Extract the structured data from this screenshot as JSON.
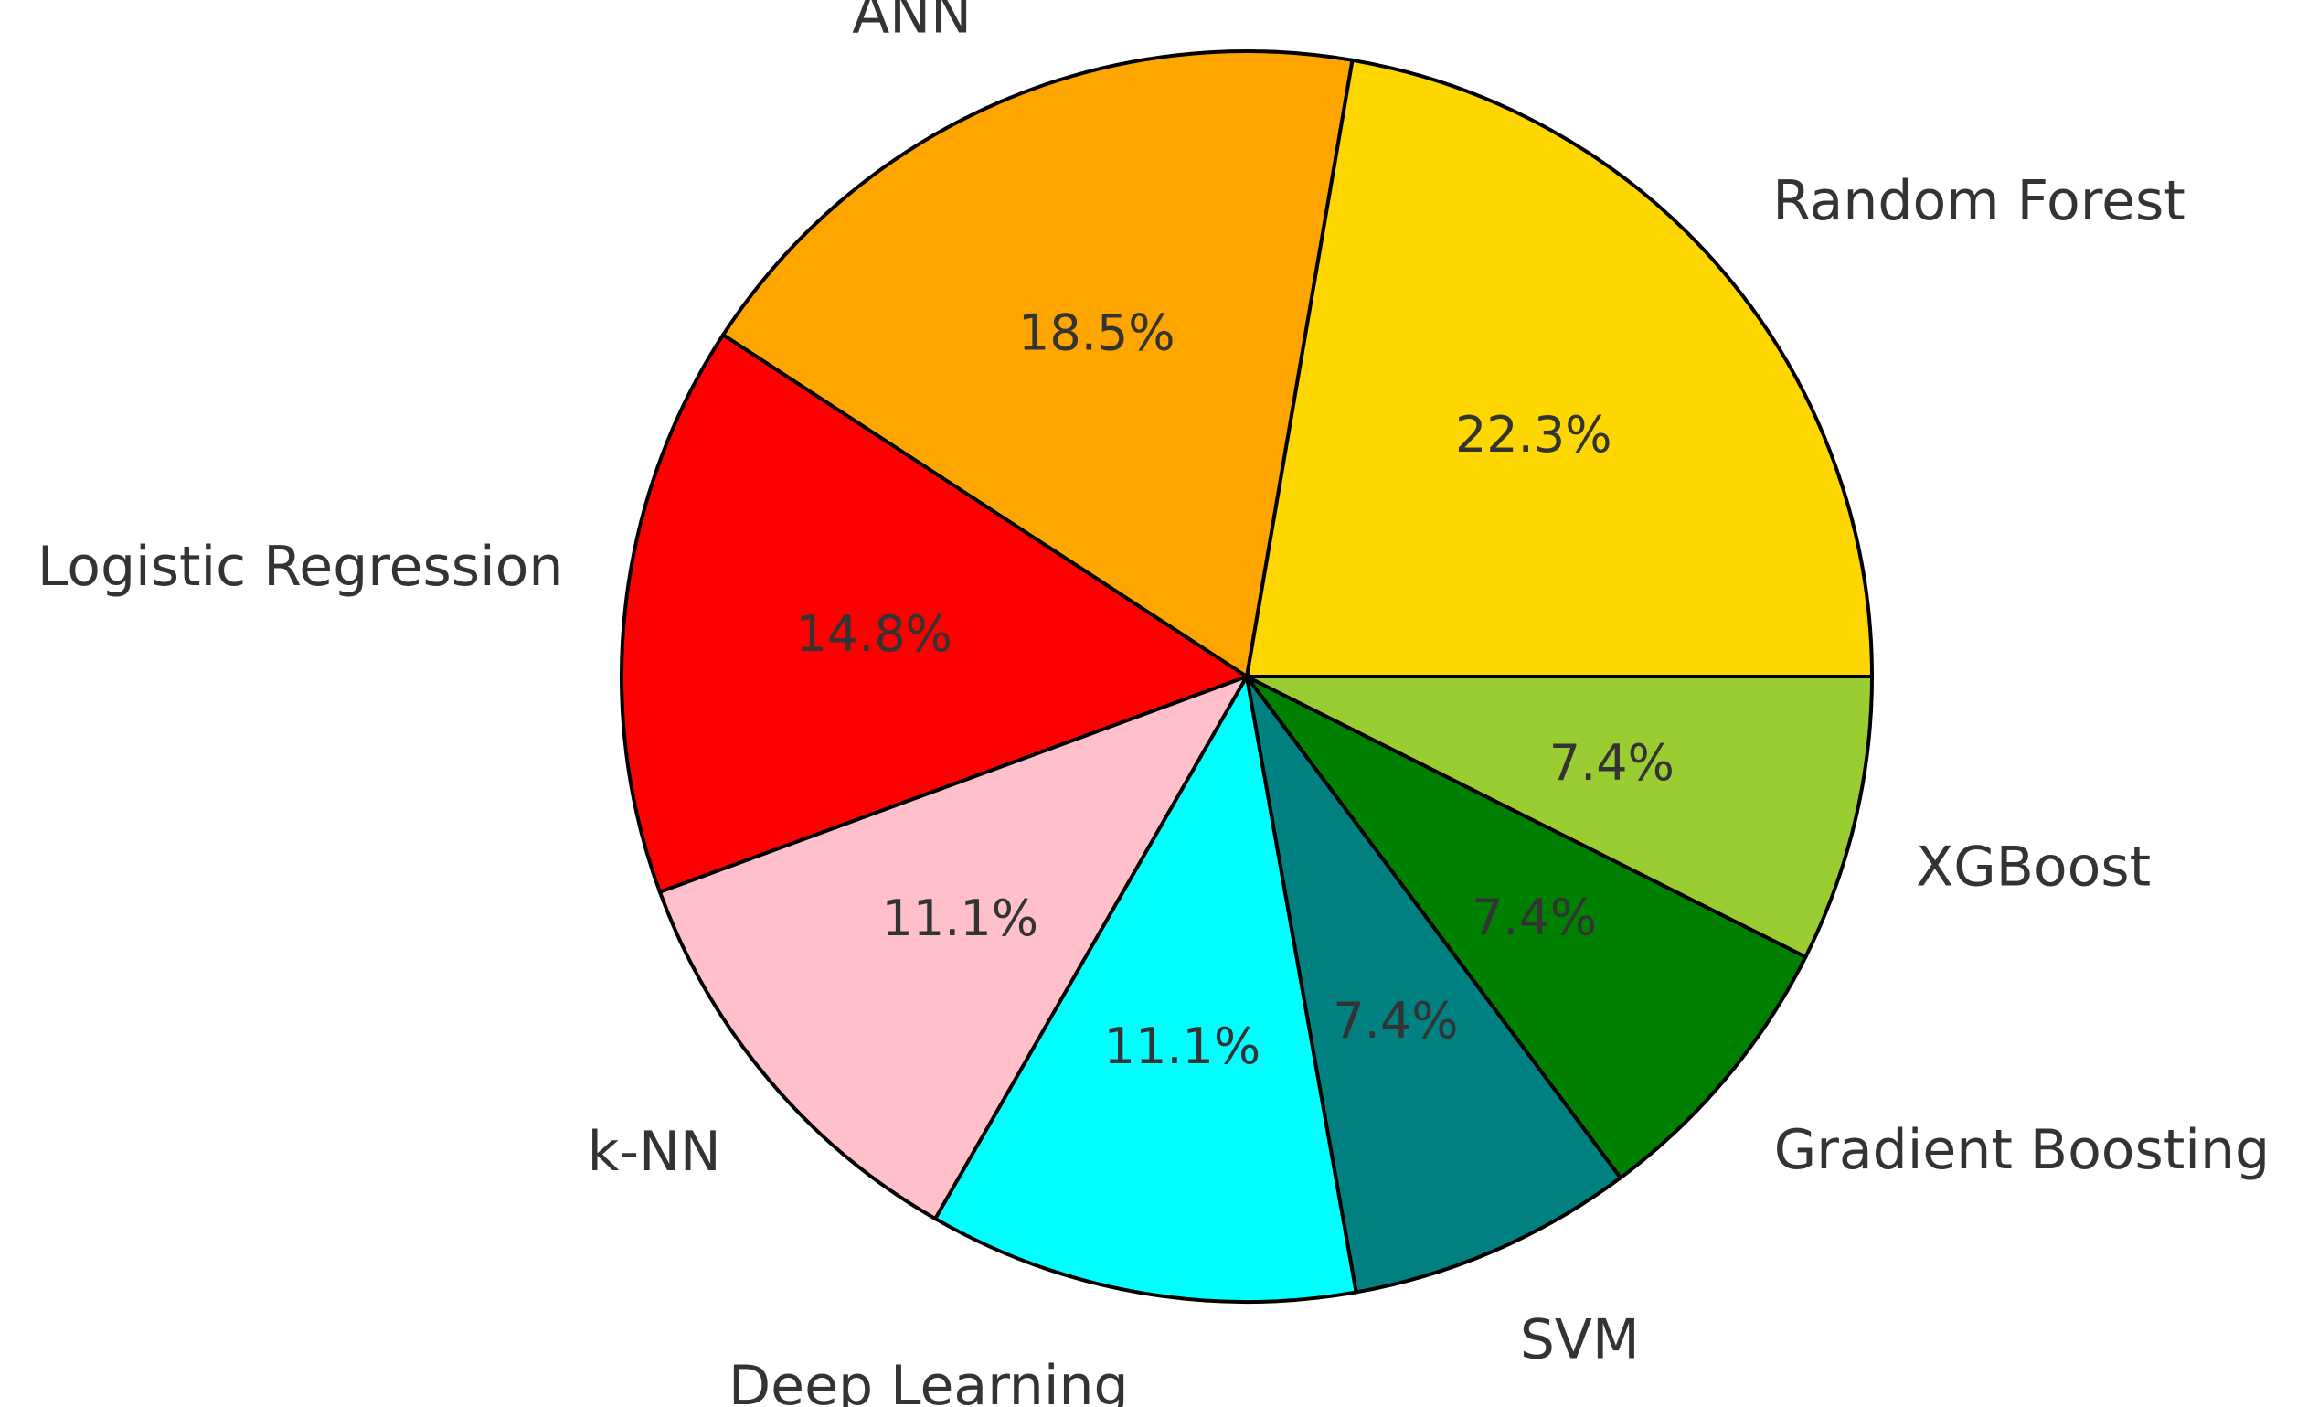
{
  "chart_data": {
    "type": "pie",
    "title": "",
    "start_angle_deg": 0,
    "direction": "counterclockwise",
    "slices": [
      {
        "label": "Random Forest",
        "value": 22.3,
        "pct_text": "22.3%",
        "color": "#FFD700"
      },
      {
        "label": "ANN",
        "value": 18.5,
        "pct_text": "18.5%",
        "color": "#FFA500"
      },
      {
        "label": "Logistic Regression",
        "value": 14.8,
        "pct_text": "14.8%",
        "color": "#FF0000"
      },
      {
        "label": "k-NN",
        "value": 11.1,
        "pct_text": "11.1%",
        "color": "#FFC0CB"
      },
      {
        "label": "Deep Learning",
        "value": 11.1,
        "pct_text": "11.1%",
        "color": "#00FFFF"
      },
      {
        "label": "SVM",
        "value": 7.4,
        "pct_text": "7.4%",
        "color": "#008080"
      },
      {
        "label": "Gradient Boosting",
        "value": 7.4,
        "pct_text": "7.4%",
        "color": "#008000"
      },
      {
        "label": "XGBoost",
        "value": 7.4,
        "pct_text": "7.4%",
        "color": "#9ACD32"
      }
    ]
  }
}
